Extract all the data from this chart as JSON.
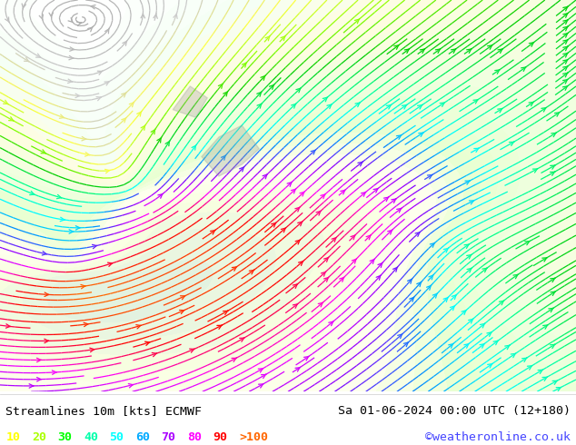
{
  "title_left": "Streamlines 10m [kts] ECMWF",
  "title_right": "Sa 01-06-2024 00:00 UTC (12+180)",
  "credit": "©weatheronline.co.uk",
  "legend_values": [
    "10",
    "20",
    "30",
    "40",
    "50",
    "60",
    "70",
    "80",
    "90",
    ">100"
  ],
  "legend_colors": [
    "#ffff00",
    "#aaff00",
    "#00ff00",
    "#00ffaa",
    "#00ffff",
    "#00aaff",
    "#aa00ff",
    "#ff00ff",
    "#ff0000",
    "#ff6600"
  ],
  "bg_color": "#ffffff",
  "map_bg": "#e8ffe8",
  "fig_width": 6.34,
  "fig_height": 4.9,
  "dpi": 100,
  "bottom_bar_color": "#ffffff",
  "title_fontsize": 9.5,
  "legend_fontsize": 9.5,
  "credit_color": "#4444ff",
  "title_color": "#000000"
}
